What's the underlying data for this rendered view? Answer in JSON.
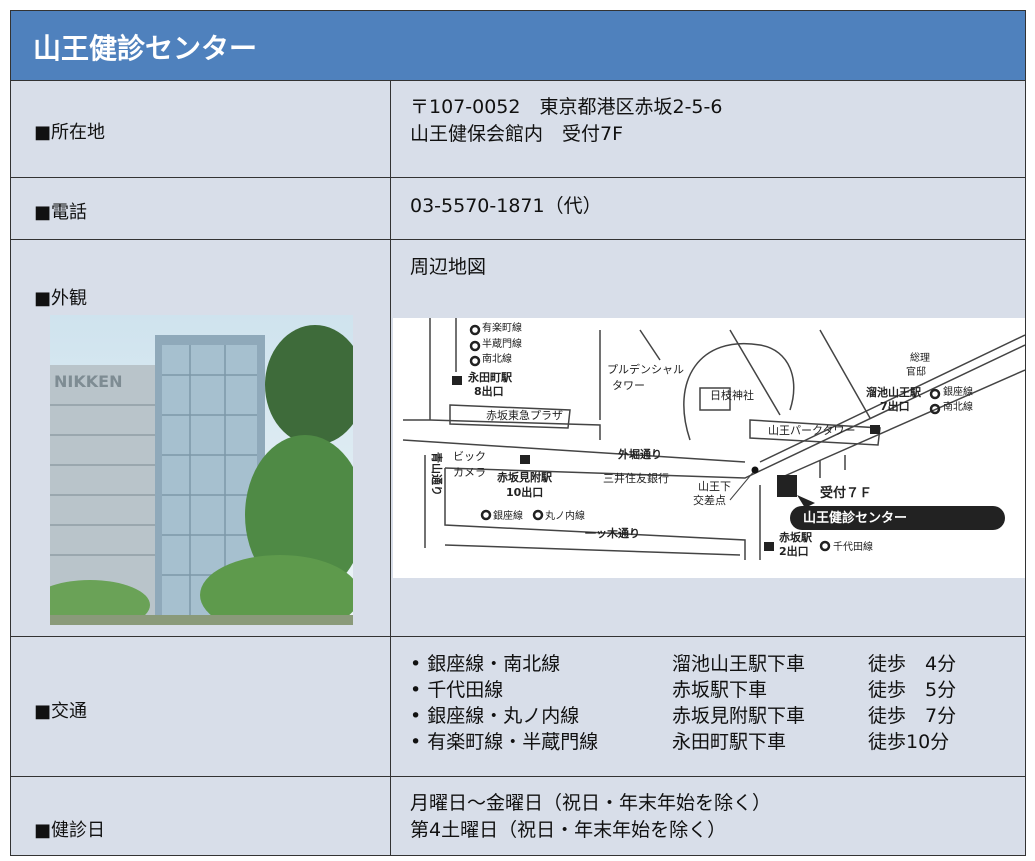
{
  "header": {
    "title": "山王健診センター"
  },
  "rows": [
    {
      "label": "■所在地",
      "lines": [
        "〒107-0052　東京都港区赤坂2-5-6",
        "山王健保会館内　受付7F"
      ]
    },
    {
      "label": "■電話",
      "lines": [
        "03-5570-1871（代）"
      ]
    },
    {
      "label": "■外観",
      "photo_sign": "NIKKEN",
      "map_title": "周辺地図"
    },
    {
      "label": "■交通",
      "routes": [
        [
          "• 銀座線・南北線",
          "溜池山王駅下車",
          "徒歩　4分"
        ],
        [
          "• 千代田線",
          "赤坂駅下車",
          "徒歩　5分"
        ],
        [
          "• 銀座線・丸ノ内線",
          "赤坂見附駅下車",
          "徒歩　7分"
        ],
        [
          "• 有楽町線・半蔵門線",
          "永田町駅下車",
          "徒歩10分"
        ]
      ]
    },
    {
      "label": "■健診日",
      "lines": [
        "月曜日～金曜日（祝日・年末年始を除く）",
        "第4土曜日（祝日・年末年始を除く）"
      ]
    }
  ],
  "map": {
    "labels": [
      "有楽町線",
      "半蔵門線",
      "南北線",
      "永田町駅",
      "8出口",
      "プルデンシャル",
      "タワー",
      "日枝神社",
      "総理",
      "官邸",
      "溜池山王駅",
      "7出口",
      "銀座線",
      "南北線",
      "赤坂東急プラザ",
      "山王パークタワー",
      "青山通り",
      "ビック",
      "カメラ",
      "外堀通り",
      "赤坂見附駅",
      "10出口",
      "三井住友銀行",
      "山王下",
      "交差点",
      "受付７Ｆ",
      "山王健診センター",
      "銀座線",
      "丸ノ内線",
      "一ッ木通り",
      "赤坂駅",
      "2出口",
      "千代田線"
    ]
  }
}
